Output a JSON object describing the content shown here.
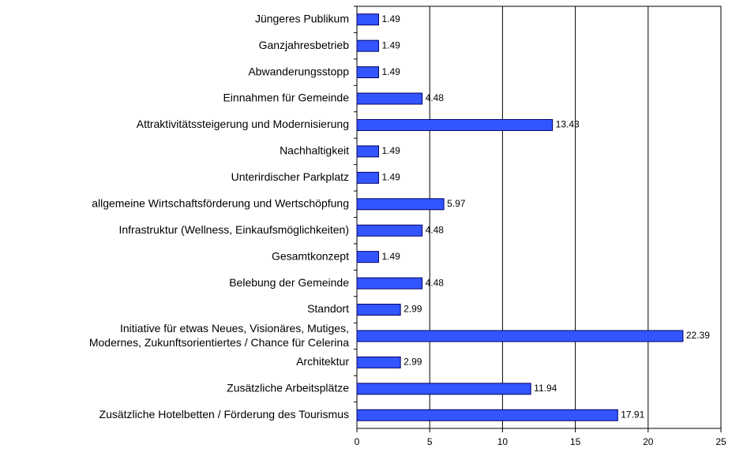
{
  "chart_data": {
    "type": "barh",
    "categories": [
      "Jüngeres Publikum",
      "Ganzjahresbetrieb",
      "Abwanderungsstopp",
      "Einnahmen für Gemeinde",
      "Attraktivitätssteigerung und Modernisierung",
      "Nachhaltigkeit",
      "Unterirdischer Parkplatz",
      "allgemeine Wirtschaftsförderung und Wertschöpfung",
      "Infrastruktur (Wellness, Einkaufsmöglichkeiten)",
      "Gesamtkonzept",
      "Belebung der Gemeinde",
      "Standort",
      "Initiative für etwas Neues, Visionäres, Mutiges,\nModernes, Zukunftsorientiertes / Chance für Celerina",
      "Architektur",
      "Zusätzliche Arbeitsplätze",
      "Zusätzliche Hotelbetten / Förderung des Tourismus"
    ],
    "values": [
      1.49,
      1.49,
      1.49,
      4.48,
      13.43,
      1.49,
      1.49,
      5.97,
      4.48,
      1.49,
      4.48,
      2.99,
      22.39,
      2.99,
      11.94,
      17.91
    ],
    "color": "#3355ff",
    "xlim": [
      0,
      25
    ],
    "xticks": [
      0,
      5,
      10,
      15,
      20,
      25
    ],
    "grid": true
  }
}
